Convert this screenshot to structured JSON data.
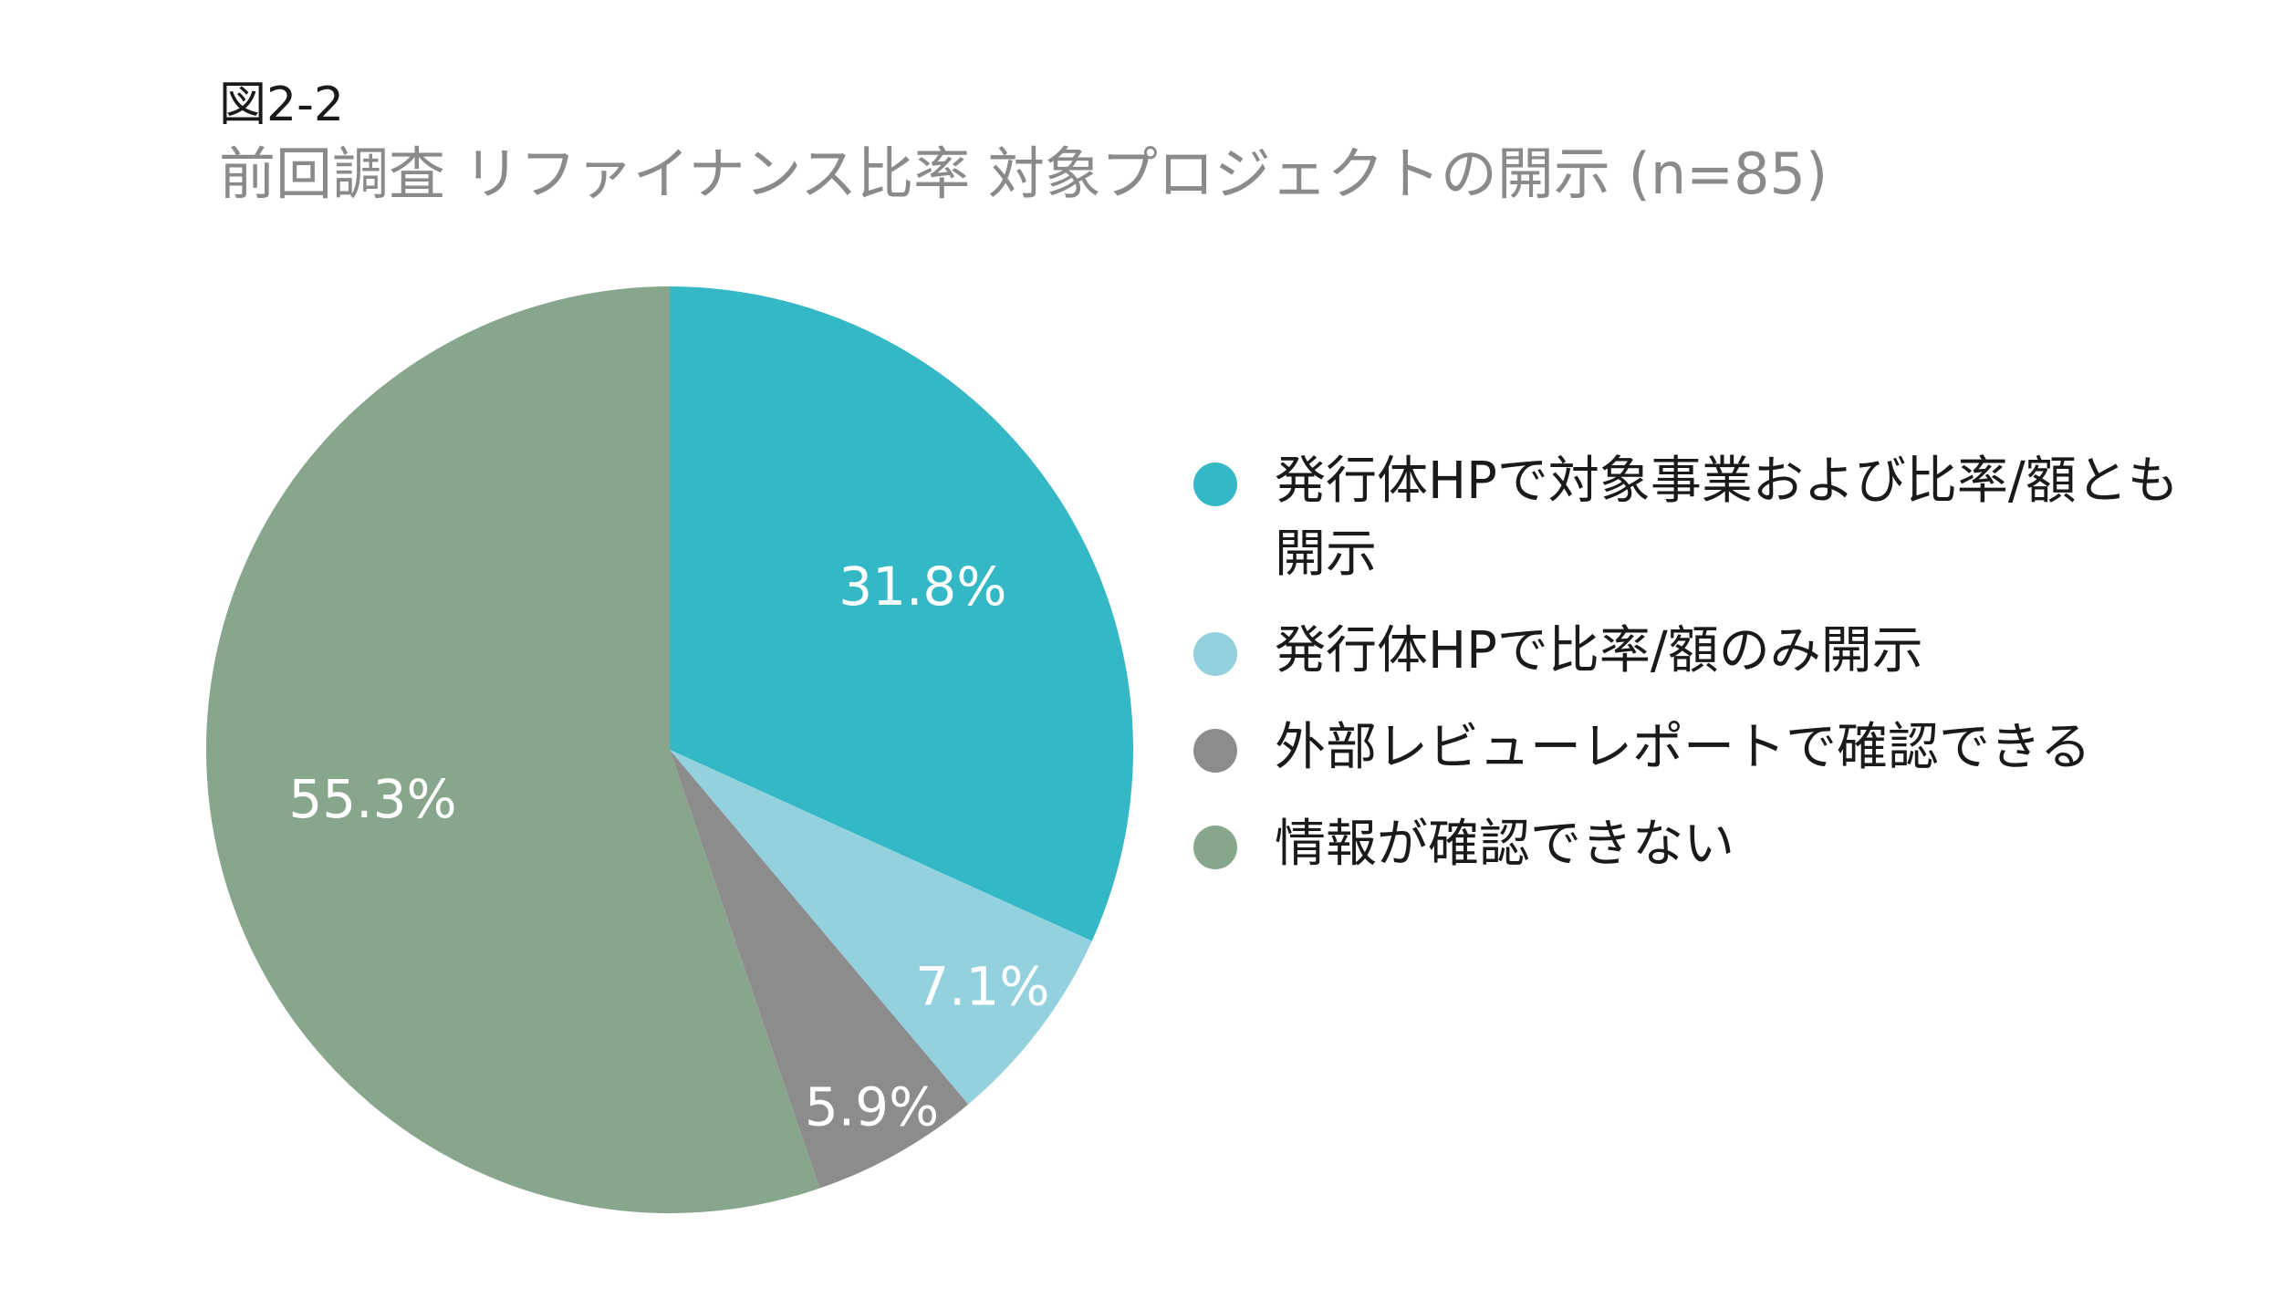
{
  "figure": {
    "label": "図2-2",
    "title": "前回調査 リファイナンス比率 対象プロジェクトの開示 (n=85)"
  },
  "chart_data": {
    "type": "pie",
    "title": "前回調査 リファイナンス比率 対象プロジェクトの開示 (n=85)",
    "start_angle_deg": 0,
    "direction": "clockwise",
    "slices": [
      {
        "label": "発行体HPで対象事業および比率/額とも開示",
        "value": 31.8,
        "display": "31.8%",
        "color": "#35b8c6"
      },
      {
        "label": "発行体HPで比率/額のみ開示",
        "value": 7.1,
        "display": "7.1%",
        "color": "#94d1de"
      },
      {
        "label": "外部レビューレポートで確認できる",
        "value": 5.9,
        "display": "5.9%",
        "color": "#8c8c8c"
      },
      {
        "label": "情報が確認できない",
        "value": 55.3,
        "display": "55.3%",
        "color": "#87a68b"
      }
    ],
    "legend_position": "right",
    "data_label_color": "#ffffff"
  }
}
